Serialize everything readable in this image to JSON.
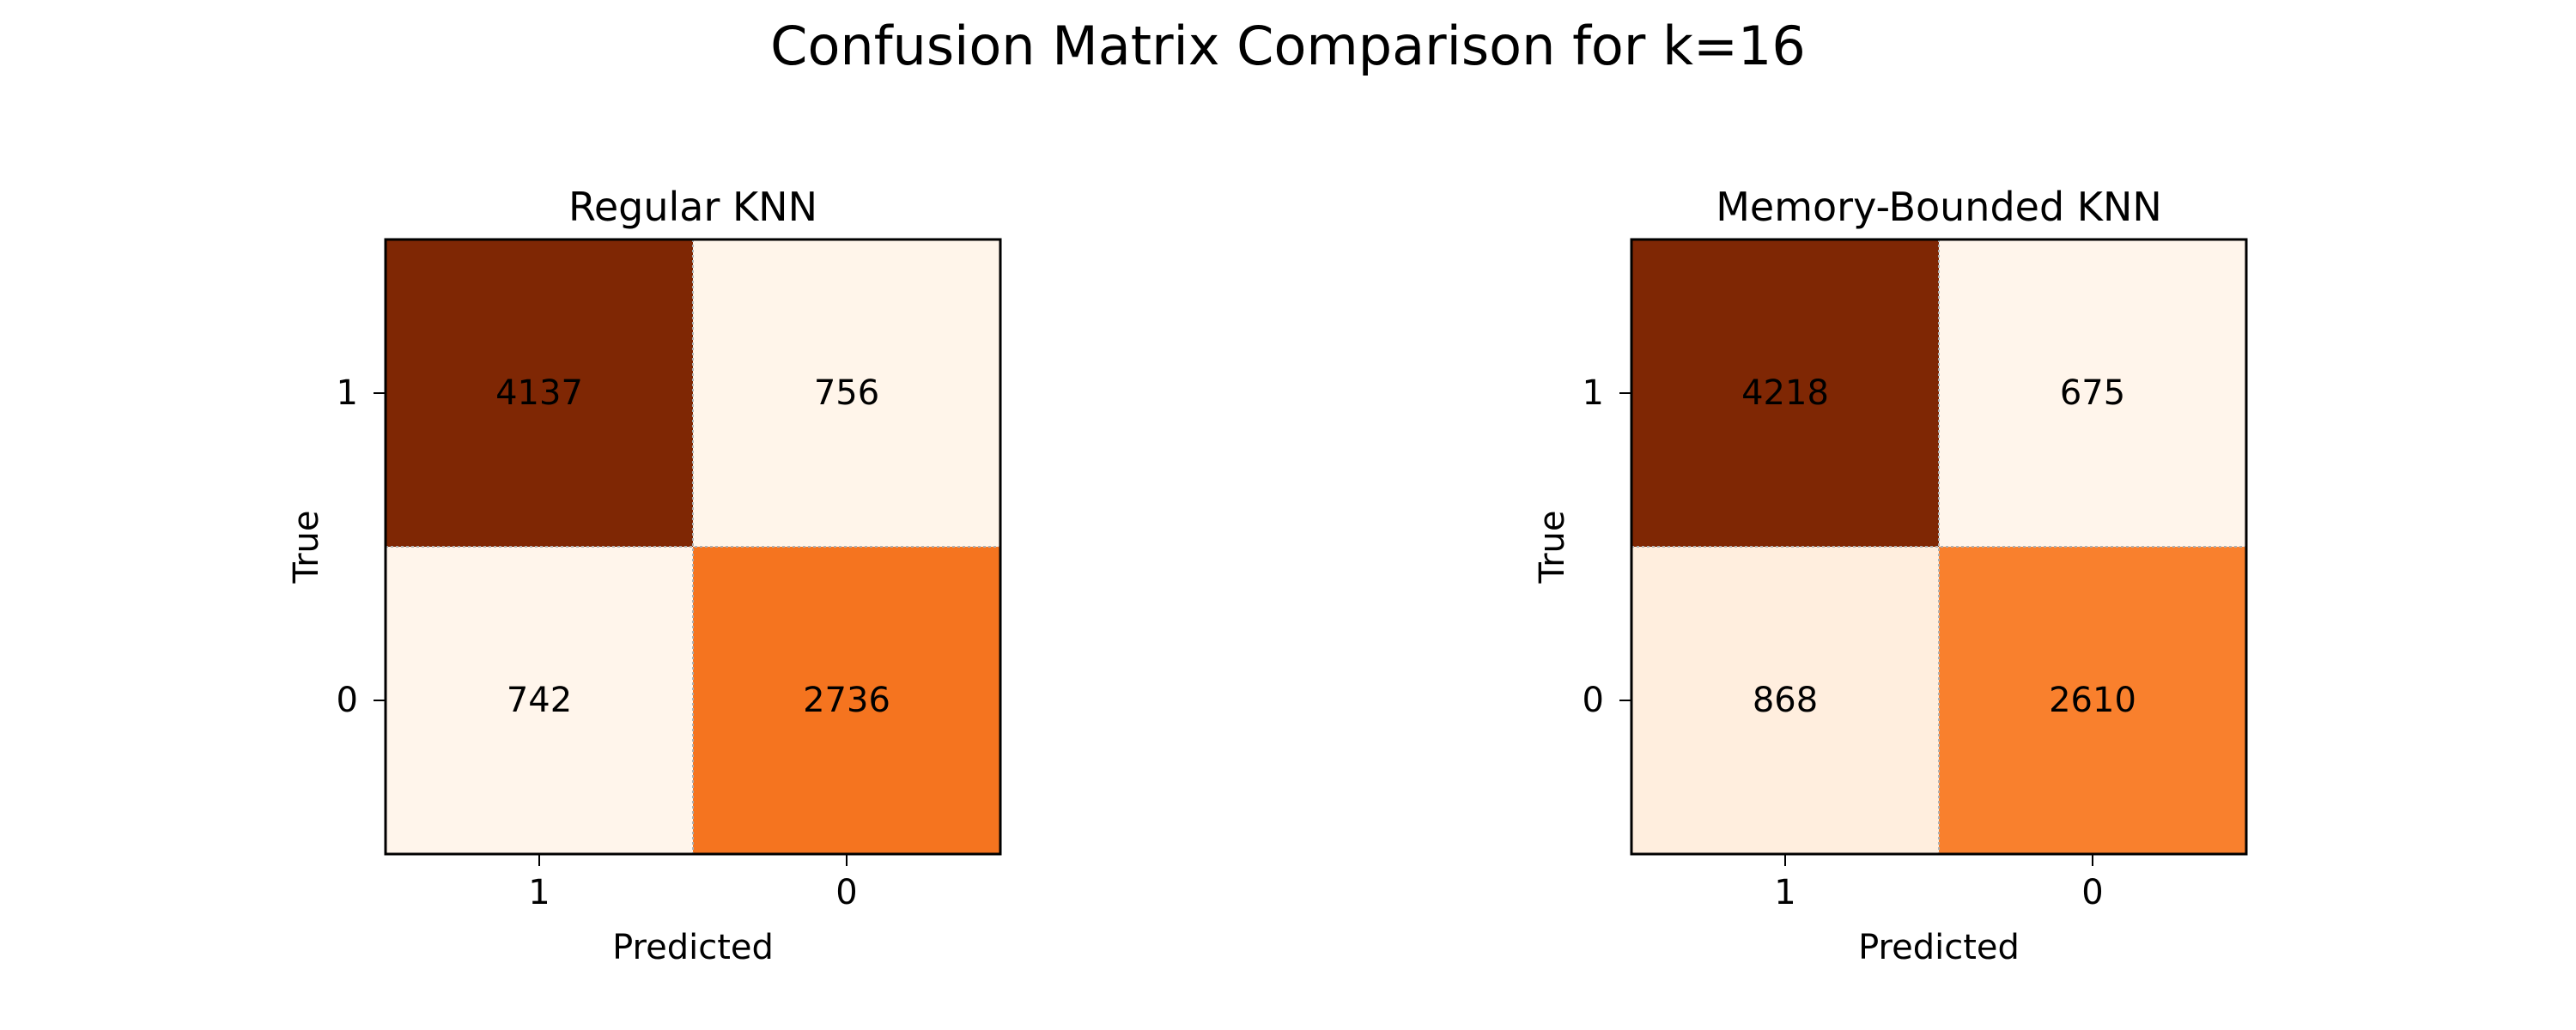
{
  "title": "Confusion Matrix Comparison for k=16",
  "chart_data": [
    {
      "type": "heatmap",
      "title": "Regular KNN",
      "xlabel": "Predicted",
      "ylabel": "True",
      "x_ticks": [
        "1",
        "0"
      ],
      "y_ticks": [
        "1",
        "0"
      ],
      "matrix": [
        [
          4137,
          756
        ],
        [
          742,
          2736
        ]
      ],
      "colormap": "Oranges",
      "grid": true
    },
    {
      "type": "heatmap",
      "title": "Memory-Bounded KNN",
      "xlabel": "Predicted",
      "ylabel": "True",
      "x_ticks": [
        "1",
        "0"
      ],
      "y_ticks": [
        "1",
        "0"
      ],
      "matrix": [
        [
          4218,
          675
        ],
        [
          868,
          2610
        ]
      ],
      "colormap": "Oranges",
      "grid": true
    }
  ]
}
